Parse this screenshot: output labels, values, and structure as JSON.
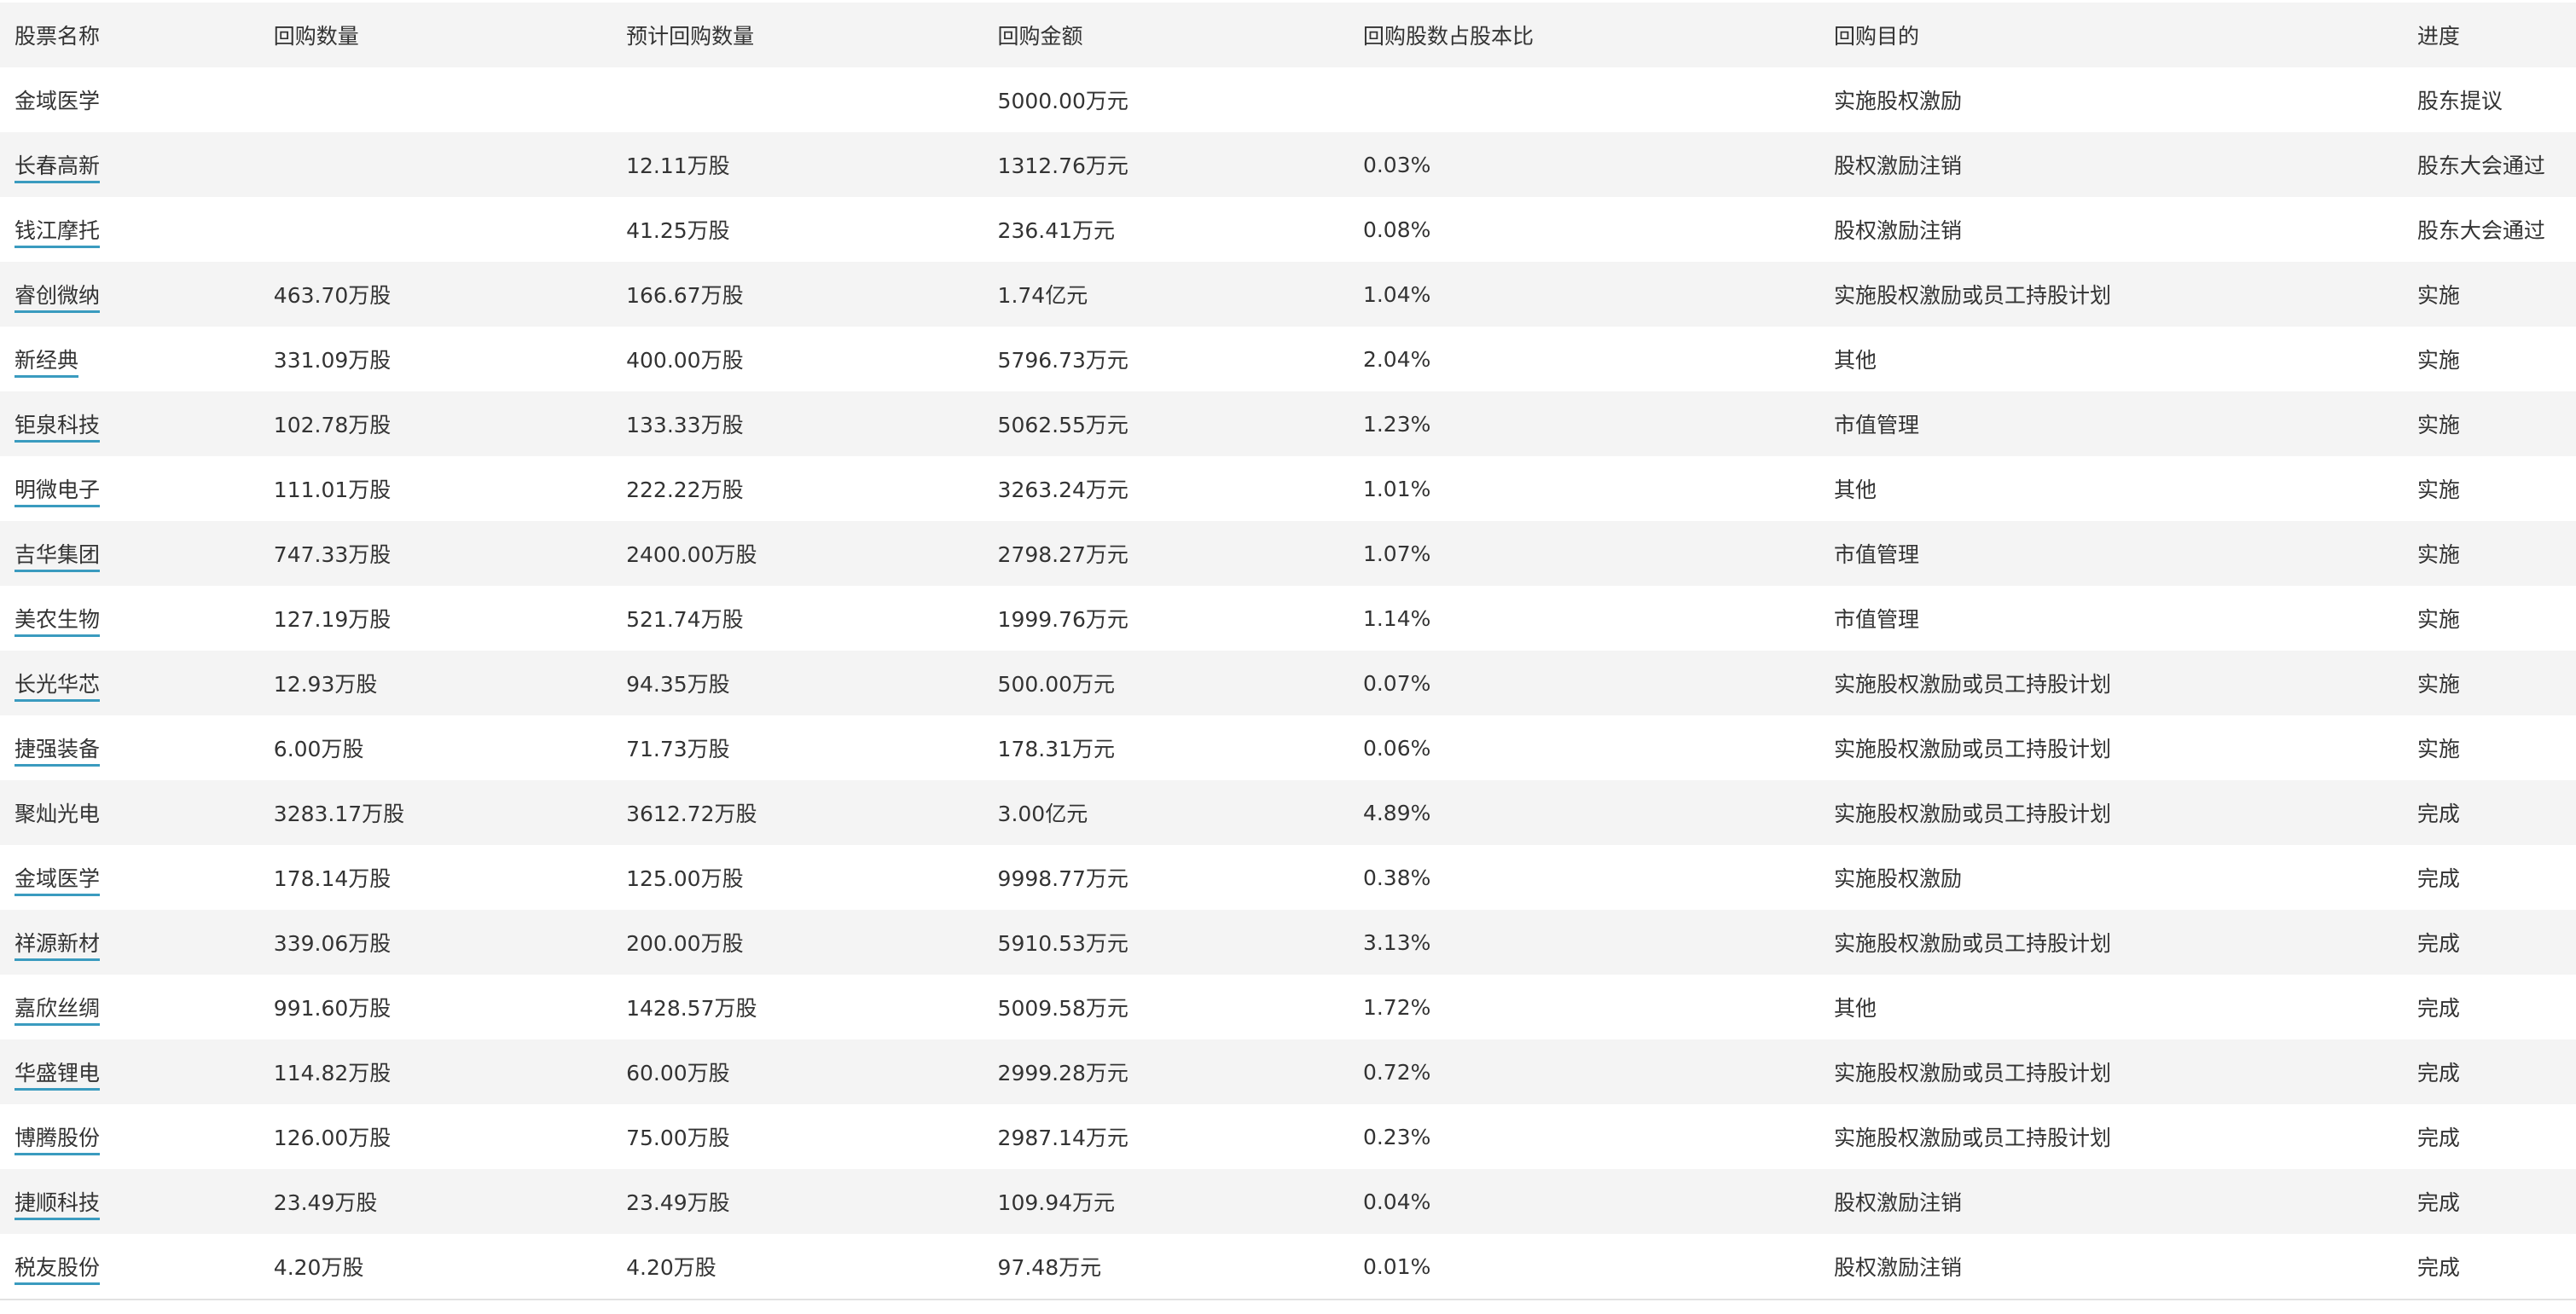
{
  "headers": [
    "股票名称",
    "回购数量",
    "预计回购数量",
    "回购金额",
    "回购股数占股本比",
    "回购目的",
    "进度"
  ],
  "link_color": "#3a9bbf",
  "rows": [
    {
      "name": "金域医学",
      "link": false,
      "qty": "",
      "planned": "",
      "amount": "5000.00万元",
      "ratio": "",
      "purpose": "实施股权激励",
      "progress": "股东提议"
    },
    {
      "name": "长春高新",
      "link": true,
      "qty": "",
      "planned": "12.11万股",
      "amount": "1312.76万元",
      "ratio": "0.03%",
      "purpose": "股权激励注销",
      "progress": "股东大会通过"
    },
    {
      "name": "钱江摩托",
      "link": true,
      "qty": "",
      "planned": "41.25万股",
      "amount": "236.41万元",
      "ratio": "0.08%",
      "purpose": "股权激励注销",
      "progress": "股东大会通过"
    },
    {
      "name": "睿创微纳",
      "link": true,
      "qty": "463.70万股",
      "planned": "166.67万股",
      "amount": "1.74亿元",
      "ratio": "1.04%",
      "purpose": "实施股权激励或员工持股计划",
      "progress": "实施"
    },
    {
      "name": "新经典",
      "link": true,
      "qty": "331.09万股",
      "planned": "400.00万股",
      "amount": "5796.73万元",
      "ratio": "2.04%",
      "purpose": "其他",
      "progress": "实施"
    },
    {
      "name": "钜泉科技",
      "link": true,
      "qty": "102.78万股",
      "planned": "133.33万股",
      "amount": "5062.55万元",
      "ratio": "1.23%",
      "purpose": "市值管理",
      "progress": "实施"
    },
    {
      "name": "明微电子",
      "link": true,
      "qty": "111.01万股",
      "planned": "222.22万股",
      "amount": "3263.24万元",
      "ratio": "1.01%",
      "purpose": "其他",
      "progress": "实施"
    },
    {
      "name": "吉华集团",
      "link": true,
      "qty": "747.33万股",
      "planned": "2400.00万股",
      "amount": "2798.27万元",
      "ratio": "1.07%",
      "purpose": "市值管理",
      "progress": "实施"
    },
    {
      "name": "美农生物",
      "link": true,
      "qty": "127.19万股",
      "planned": "521.74万股",
      "amount": "1999.76万元",
      "ratio": "1.14%",
      "purpose": "市值管理",
      "progress": "实施"
    },
    {
      "name": "长光华芯",
      "link": true,
      "qty": "12.93万股",
      "planned": "94.35万股",
      "amount": "500.00万元",
      "ratio": "0.07%",
      "purpose": "实施股权激励或员工持股计划",
      "progress": "实施"
    },
    {
      "name": "捷强装备",
      "link": true,
      "qty": "6.00万股",
      "planned": "71.73万股",
      "amount": "178.31万元",
      "ratio": "0.06%",
      "purpose": "实施股权激励或员工持股计划",
      "progress": "实施"
    },
    {
      "name": "聚灿光电",
      "link": false,
      "qty": "3283.17万股",
      "planned": "3612.72万股",
      "amount": "3.00亿元",
      "ratio": "4.89%",
      "purpose": "实施股权激励或员工持股计划",
      "progress": "完成"
    },
    {
      "name": "金域医学",
      "link": true,
      "qty": "178.14万股",
      "planned": "125.00万股",
      "amount": "9998.77万元",
      "ratio": "0.38%",
      "purpose": "实施股权激励",
      "progress": "完成"
    },
    {
      "name": "祥源新材",
      "link": true,
      "qty": "339.06万股",
      "planned": "200.00万股",
      "amount": "5910.53万元",
      "ratio": "3.13%",
      "purpose": "实施股权激励或员工持股计划",
      "progress": "完成"
    },
    {
      "name": "嘉欣丝绸",
      "link": true,
      "qty": "991.60万股",
      "planned": "1428.57万股",
      "amount": "5009.58万元",
      "ratio": "1.72%",
      "purpose": "其他",
      "progress": "完成"
    },
    {
      "name": "华盛锂电",
      "link": true,
      "qty": "114.82万股",
      "planned": "60.00万股",
      "amount": "2999.28万元",
      "ratio": "0.72%",
      "purpose": "实施股权激励或员工持股计划",
      "progress": "完成"
    },
    {
      "name": "博腾股份",
      "link": true,
      "qty": "126.00万股",
      "planned": "75.00万股",
      "amount": "2987.14万元",
      "ratio": "0.23%",
      "purpose": "实施股权激励或员工持股计划",
      "progress": "完成"
    },
    {
      "name": "捷顺科技",
      "link": true,
      "qty": "23.49万股",
      "planned": "23.49万股",
      "amount": "109.94万元",
      "ratio": "0.04%",
      "purpose": "股权激励注销",
      "progress": "完成"
    },
    {
      "name": "税友股份",
      "link": true,
      "qty": "4.20万股",
      "planned": "4.20万股",
      "amount": "97.48万元",
      "ratio": "0.01%",
      "purpose": "股权激励注销",
      "progress": "完成"
    }
  ]
}
